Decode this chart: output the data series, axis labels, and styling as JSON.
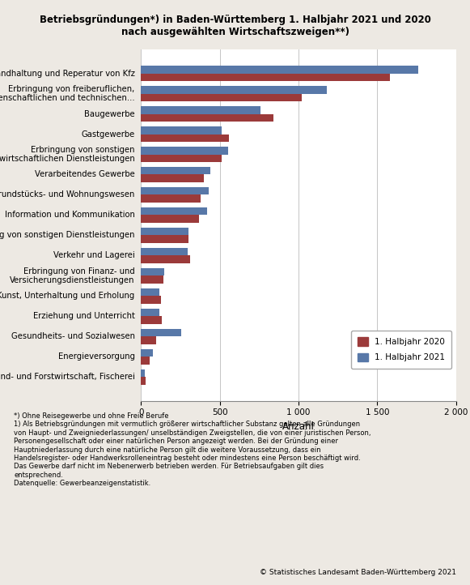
{
  "title_line1": "Betriebsgründungen*) in Baden-Württemberg 1. Halbjahr 2021 und 2020",
  "title_line2": "nach ausgewählten Wirtschaftszweigen**)",
  "categories": [
    "Handel, Instandhaltung und Reperatur von Kfz",
    "Erbringung von freiberuflichen,\nwissenschaftlichen und technischen...",
    "Baugewerbe",
    "Gastgewerbe",
    "Erbringung von sonstigen\nwirtschaftlichen Dienstleistungen",
    "Verarbeitendes Gewerbe",
    "Grundstücks- und Wohnungswesen",
    "Information und Kommunikation",
    "Erbringung von sonstigen Dienstleistungen",
    "Verkehr und Lagerei",
    "Erbringung von Finanz- und\nVersicherungsdienstleistungen",
    "Kunst, Unterhaltung und Erholung",
    "Erziehung und Unterricht",
    "Gesundheits- und Sozialwesen",
    "Energieversorgung",
    "Land- und Forstwirtschaft, Fischerei"
  ],
  "values_2020": [
    1580,
    1020,
    840,
    560,
    510,
    400,
    380,
    370,
    300,
    310,
    140,
    125,
    130,
    95,
    55,
    30
  ],
  "values_2021": [
    1760,
    1180,
    760,
    510,
    555,
    440,
    430,
    420,
    300,
    295,
    150,
    115,
    115,
    255,
    75,
    25
  ],
  "color_2020": "#9b3a3a",
  "color_2021": "#5878a8",
  "legend_2020": "1. Halbjahr 2020",
  "legend_2021": "1. Halbjahr 2021",
  "xlabel": "Anzahl",
  "xlim": [
    0,
    2000
  ],
  "xticks": [
    0,
    500,
    1000,
    1500,
    2000
  ],
  "xtick_labels": [
    "0",
    "500",
    "1 000",
    "1 500",
    "2 000"
  ],
  "footnote1": "*) Ohne Reisegewerbe und ohne Freie Berufe",
  "footnote2": "1) Als Betriebsgründungen mit vermutlich größerer wirtschaftlicher Substanz gelten alle Gründungen\nvon Haupt- und Zweigniederlassungen/ unselbständigen Zweigstellen, die von einer juristischen Person,\nPersonengesellschaft oder einer natürlichen Person angezeigt werden. Bei der Gründung einer\nHauptniederlassung durch eine natürliche Person gilt die weitere Voraussetzung, dass ein\nHandelsregister- oder Handwerksrolleneintrag besteht oder mindestens eine Person beschäftigt wird.\nDas Gewerbe darf nicht im Nebenerwerb betrieben werden. Für Betriebsaufgaben gilt dies\nentsprechend.",
  "footnote3": "Datenquelle: Gewerbeanzeigenstatistik.",
  "copyright": "© Statistisches Landesamt Baden-Württemberg 2021",
  "bg_color": "#ede9e3",
  "plot_bg_color": "#ffffff",
  "grid_color": "#bbbbbb"
}
